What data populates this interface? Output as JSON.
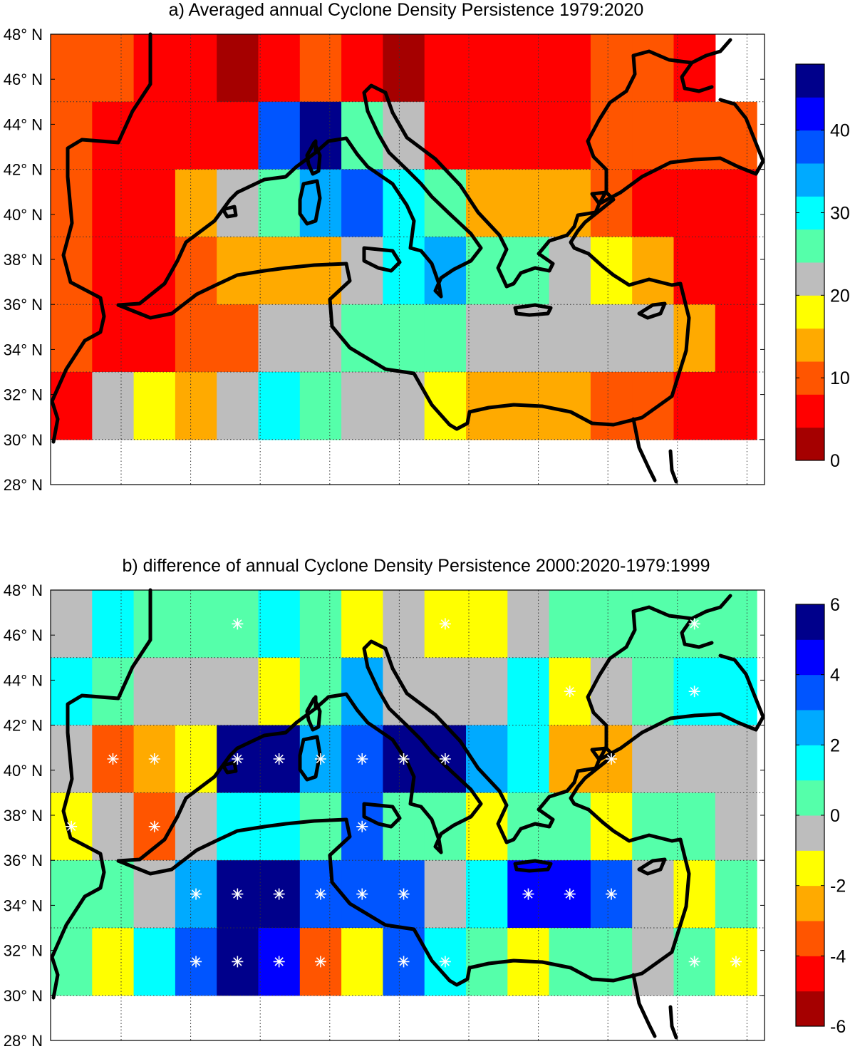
{
  "chart_data": [
    {
      "type": "heatmap",
      "title": "a) Averaged annual Cyclone Density Persistence 1979:2020",
      "y_tick_labels": [
        "28° N",
        "30° N",
        "32° N",
        "34° N",
        "36° N",
        "38° N",
        "40° N",
        "42° N",
        "44° N",
        "46° N",
        "48° N"
      ],
      "ylim": [
        28,
        48
      ],
      "cell_rows_lat_top": [
        48,
        45,
        42,
        39,
        36,
        33
      ],
      "colorbar": {
        "min": 0,
        "max": 48,
        "step": 4,
        "tick_values": [
          0,
          10,
          20,
          30,
          40
        ],
        "tick_labels": [
          "0",
          "10",
          "20",
          "30",
          "40"
        ],
        "colors": [
          "#a50000",
          "#ff0000",
          "#ff5500",
          "#ffaa00",
          "#ffff00",
          "#bdbdbd",
          "#55ffaa",
          "#00ffff",
          "#00aaff",
          "#0055ff",
          "#0000ff",
          "#00008b"
        ]
      },
      "values": [
        [
          10,
          10,
          6,
          6,
          2,
          6,
          10,
          6,
          2,
          6,
          6,
          6,
          6,
          10,
          10,
          6,
          6
        ],
        [
          10,
          6,
          6,
          6,
          6,
          38,
          46,
          26,
          22,
          6,
          6,
          6,
          6,
          10,
          10,
          10,
          10
        ],
        [
          10,
          6,
          6,
          14,
          22,
          26,
          34,
          38,
          30,
          26,
          14,
          14,
          14,
          10,
          6,
          6,
          6
        ],
        [
          10,
          6,
          6,
          10,
          14,
          14,
          14,
          22,
          30,
          34,
          26,
          26,
          22,
          18,
          14,
          6,
          6
        ],
        [
          10,
          6,
          6,
          10,
          10,
          22,
          22,
          26,
          26,
          26,
          22,
          22,
          22,
          22,
          22,
          14,
          6
        ],
        [
          6,
          22,
          18,
          14,
          22,
          30,
          26,
          22,
          22,
          18,
          14,
          14,
          14,
          10,
          10,
          6,
          6
        ]
      ],
      "missing_cells": [
        [
          0,
          16
        ]
      ]
    },
    {
      "type": "heatmap",
      "title": "b) difference of annual Cyclone Density Persistence 2000:2020-1979:1999",
      "y_tick_labels": [
        "28° N",
        "30° N",
        "32° N",
        "34° N",
        "36° N",
        "38° N",
        "40° N",
        "42° N",
        "44° N",
        "46° N",
        "48° N"
      ],
      "ylim": [
        28,
        48
      ],
      "cell_rows_lat_top": [
        48,
        45,
        42,
        39,
        36,
        33
      ],
      "colorbar": {
        "min": -6,
        "max": 6,
        "step": 1,
        "tick_values": [
          -6,
          -4,
          -2,
          0,
          2,
          4,
          6
        ],
        "tick_labels": [
          "-6",
          "-4",
          "-2",
          "0",
          "2",
          "4",
          "6"
        ],
        "colors": [
          "#a50000",
          "#ff0000",
          "#ff5500",
          "#ffaa00",
          "#ffff00",
          "#bdbdbd",
          "#55ffaa",
          "#00ffff",
          "#00aaff",
          "#0055ff",
          "#0000ff",
          "#00008b"
        ]
      },
      "values": [
        [
          -0.5,
          1.5,
          0.5,
          0.5,
          0.5,
          1.5,
          0.5,
          -1.5,
          -0.5,
          -1.5,
          -1.5,
          -0.5,
          0.5,
          0.5,
          0.5,
          0.5,
          0.5
        ],
        [
          1.5,
          0.5,
          -0.5,
          -0.5,
          -0.5,
          -1.5,
          0.5,
          2.5,
          -0.5,
          -0.5,
          -0.5,
          1.5,
          -1.5,
          -0.5,
          0.5,
          1.5,
          1.5
        ],
        [
          -0.5,
          -3.5,
          -2.5,
          -1.5,
          5.5,
          5.5,
          2.5,
          3.5,
          5.5,
          5.5,
          2.5,
          1.5,
          -2.5,
          -2.5,
          -0.5,
          -0.5,
          -0.5
        ],
        [
          -1.5,
          -0.5,
          -3.5,
          -0.5,
          1.5,
          1.5,
          0.5,
          3.5,
          0.5,
          0.5,
          -1.5,
          0.5,
          0.5,
          -1.5,
          0.5,
          0.5,
          -0.5
        ],
        [
          0.5,
          0.5,
          -0.5,
          2.5,
          5.5,
          5.5,
          3.5,
          3.5,
          3.5,
          -0.5,
          1.5,
          4.5,
          4.5,
          3.5,
          -0.5,
          -1.5,
          0.5
        ],
        [
          0.5,
          -1.5,
          1.5,
          3.5,
          5.5,
          4.5,
          -3.5,
          -1.5,
          3.5,
          1.5,
          0.5,
          -1.5,
          0.5,
          0.5,
          -0.5,
          0.5,
          -1.5
        ]
      ],
      "missing_cells": [],
      "significant_cells": [
        [
          0,
          4
        ],
        [
          0,
          9
        ],
        [
          0,
          15
        ],
        [
          1,
          12
        ],
        [
          1,
          15
        ],
        [
          2,
          1
        ],
        [
          2,
          2
        ],
        [
          2,
          4
        ],
        [
          2,
          5
        ],
        [
          2,
          6
        ],
        [
          2,
          7
        ],
        [
          2,
          8
        ],
        [
          2,
          9
        ],
        [
          2,
          13
        ],
        [
          3,
          0
        ],
        [
          3,
          2
        ],
        [
          3,
          7
        ],
        [
          4,
          3
        ],
        [
          4,
          4
        ],
        [
          4,
          5
        ],
        [
          4,
          6
        ],
        [
          4,
          7
        ],
        [
          4,
          8
        ],
        [
          4,
          11
        ],
        [
          4,
          12
        ],
        [
          4,
          13
        ],
        [
          5,
          3
        ],
        [
          5,
          4
        ],
        [
          5,
          5
        ],
        [
          5,
          6
        ],
        [
          5,
          8
        ],
        [
          5,
          9
        ],
        [
          5,
          15
        ],
        [
          5,
          16
        ]
      ]
    }
  ]
}
